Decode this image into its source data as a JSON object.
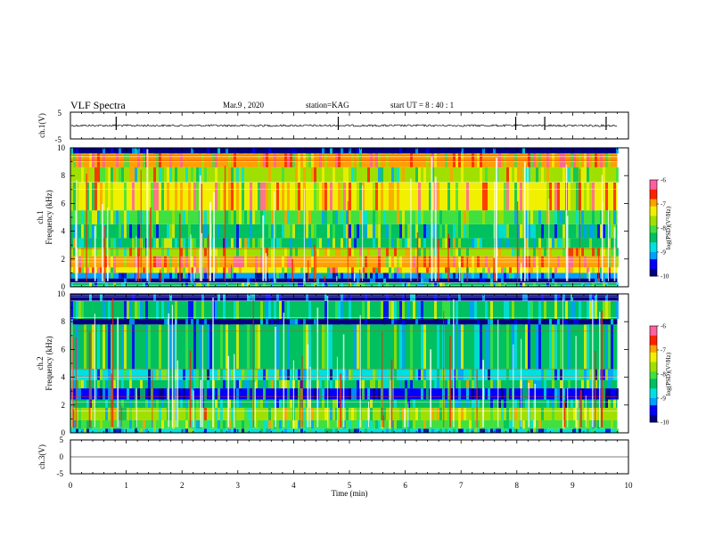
{
  "header": {
    "title": "VLF Spectra",
    "date": "Mar.9 , 2020",
    "station": "station=KAG",
    "start": "start UT = 8 : 40 : 1"
  },
  "colors": {
    "spectrogram": [
      "#000080",
      "#0000ff",
      "#00a0ff",
      "#00e0e0",
      "#00c060",
      "#40e040",
      "#a0e000",
      "#f0f000",
      "#ffa000",
      "#ff2000",
      "#ff60a0",
      "#ffffff"
    ]
  },
  "chart_data": [
    {
      "type": "line",
      "panel": "ch1-waveform",
      "ylabel": "ch.1(V)",
      "ylim": [
        -5,
        5
      ],
      "yticks": [
        "5",
        "-5"
      ],
      "baseline": 0,
      "spikes_min": [
        0.82,
        4.8,
        7.98,
        8.5,
        9.6
      ],
      "xlim": [
        0,
        10
      ]
    },
    {
      "type": "heatmap",
      "panel": "ch1-spectrogram",
      "ylabel": "Frequency (kHz)",
      "panel_label": "ch.1",
      "ylim": [
        0,
        10
      ],
      "yticks": [
        "0",
        "2",
        "4",
        "6",
        "8",
        "10"
      ],
      "xlim": [
        0,
        10
      ],
      "data_end_min": 9.8,
      "colorbar": {
        "label": "log(PSD)(V²/Hz)",
        "ticks": [
          "-6",
          "-7",
          "-8",
          "-9",
          "-10"
        ],
        "range": [
          -10,
          -6
        ]
      },
      "bands_khz": [
        {
          "from": 0.0,
          "to": 0.3,
          "level": -8.3
        },
        {
          "from": 0.3,
          "to": 0.6,
          "level": -9.8
        },
        {
          "from": 0.6,
          "to": 1.0,
          "level": -9.0
        },
        {
          "from": 1.0,
          "to": 1.4,
          "level": -7.2
        },
        {
          "from": 1.4,
          "to": 2.2,
          "level": -6.8
        },
        {
          "from": 2.2,
          "to": 2.8,
          "level": -7.5
        },
        {
          "from": 2.8,
          "to": 3.5,
          "level": -8.2
        },
        {
          "from": 3.5,
          "to": 4.5,
          "level": -8.4
        },
        {
          "from": 4.5,
          "to": 5.5,
          "level": -8.0
        },
        {
          "from": 5.5,
          "to": 7.5,
          "level": -7.2
        },
        {
          "from": 7.5,
          "to": 8.6,
          "level": -7.8
        },
        {
          "from": 8.6,
          "to": 9.6,
          "level": -7.0
        },
        {
          "from": 9.6,
          "to": 10.0,
          "level": -9.9
        }
      ]
    },
    {
      "type": "heatmap",
      "panel": "ch2-spectrogram",
      "ylabel": "Frequency (kHz)",
      "panel_label": "ch.2",
      "ylim": [
        0,
        10
      ],
      "yticks": [
        "0",
        "2",
        "4",
        "6",
        "8",
        "10"
      ],
      "xlim": [
        0,
        10
      ],
      "data_end_min": 9.8,
      "colorbar": {
        "label": "log(PSD)(V²/Hz)",
        "ticks": [
          "-6",
          "-7",
          "-8",
          "-9",
          "-10"
        ],
        "range": [
          -10,
          -6
        ]
      },
      "bands_khz": [
        {
          "from": 0.0,
          "to": 0.3,
          "level": -8.8
        },
        {
          "from": 0.3,
          "to": 0.9,
          "level": -8.0
        },
        {
          "from": 0.9,
          "to": 1.8,
          "level": -7.8
        },
        {
          "from": 1.8,
          "to": 2.4,
          "level": -8.5
        },
        {
          "from": 2.4,
          "to": 3.2,
          "level": -9.3
        },
        {
          "from": 3.2,
          "to": 3.8,
          "level": -8.2
        },
        {
          "from": 3.8,
          "to": 4.6,
          "level": -8.7
        },
        {
          "from": 4.6,
          "to": 7.8,
          "level": -8.3
        },
        {
          "from": 7.8,
          "to": 8.2,
          "level": -9.9
        },
        {
          "from": 8.2,
          "to": 9.5,
          "level": -8.4
        },
        {
          "from": 9.5,
          "to": 10.0,
          "level": -9.8
        }
      ]
    },
    {
      "type": "line",
      "panel": "ch3-waveform",
      "ylabel": "ch.3(V)",
      "ylim": [
        -5,
        5
      ],
      "yticks": [
        "5",
        "0",
        "-5"
      ],
      "xlim": [
        0,
        10
      ]
    }
  ],
  "xaxis": {
    "label": "Time (min)",
    "ticks": [
      "0",
      "1",
      "2",
      "3",
      "4",
      "5",
      "6",
      "7",
      "8",
      "9",
      "10"
    ]
  }
}
